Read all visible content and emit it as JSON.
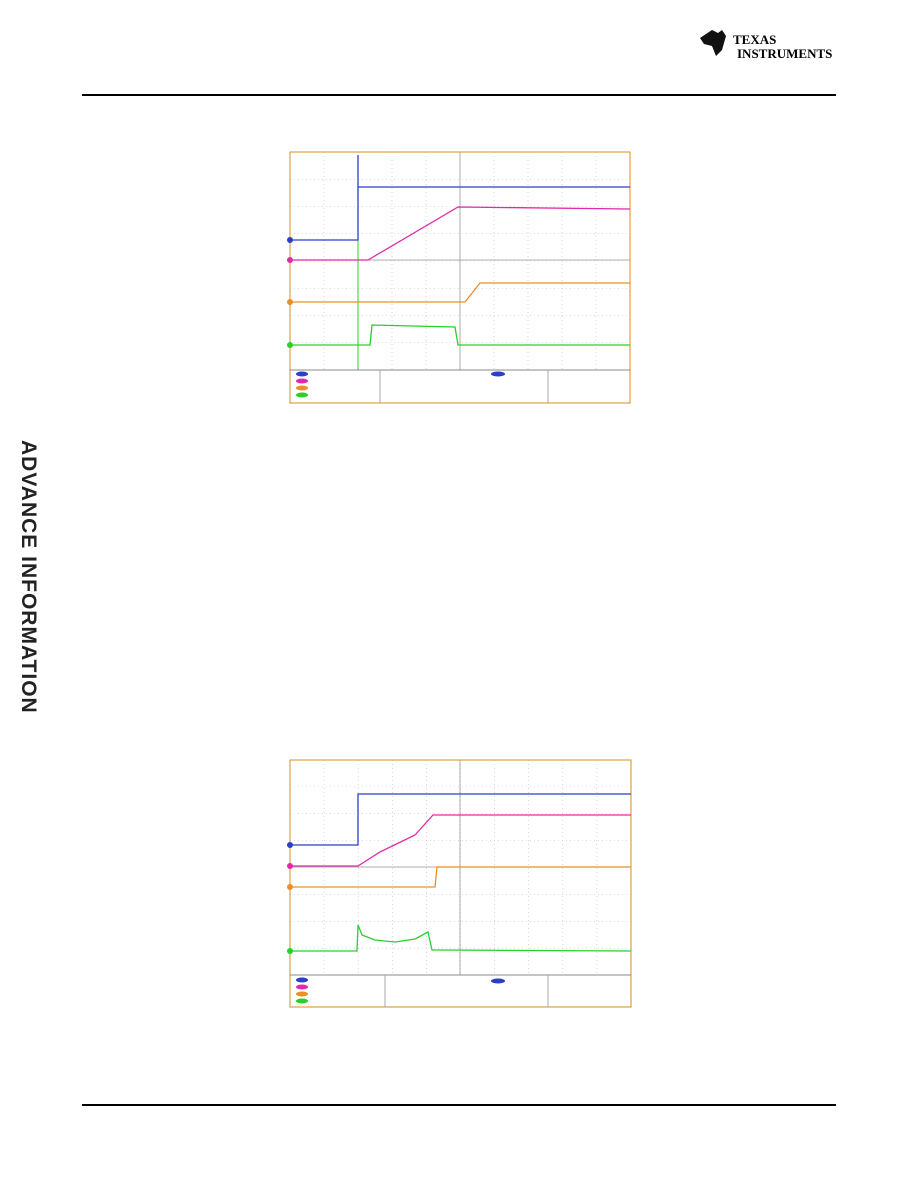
{
  "header": {
    "logo_line1": "TEXAS",
    "logo_line2": "INSTRUMENTS"
  },
  "sidebar": {
    "text": "ADVANCE INFORMATION"
  }
}
